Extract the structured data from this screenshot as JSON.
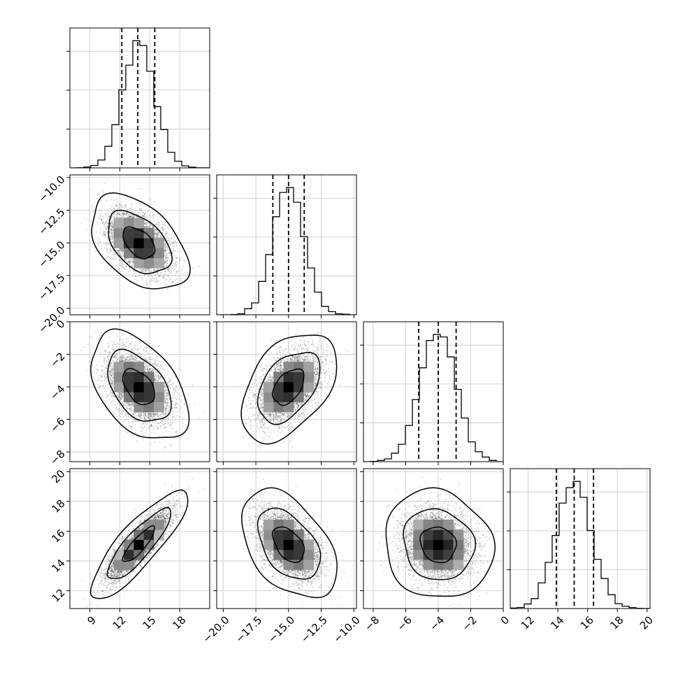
{
  "chart_data": {
    "type": "corner",
    "parameters": [
      {
        "ticks": [
          9,
          12,
          15,
          18
        ],
        "tick_labels": [
          "9",
          "12",
          "15",
          "18"
        ],
        "range": [
          7.0,
          21.0
        ],
        "quantiles": [
          12.2,
          13.8,
          15.5
        ],
        "mean": 13.9,
        "sd": 1.6
      },
      {
        "ticks": [
          -20.0,
          -17.5,
          -15.0,
          -12.5,
          -10.0
        ],
        "tick_labels": [
          "−20.0",
          "−17.5",
          "−15.0",
          "−12.5",
          "−10.0"
        ],
        "range": [
          -20.5,
          -9.8
        ],
        "quantiles": [
          -16.2,
          -15.0,
          -13.8
        ],
        "mean": -15.0,
        "sd": 1.2
      },
      {
        "ticks": [
          -8,
          -6,
          -4,
          -2,
          0
        ],
        "tick_labels": [
          "−8",
          "−6",
          "−4",
          "−2",
          "0"
        ],
        "range": [
          -8.6,
          0.0
        ],
        "quantiles": [
          -5.2,
          -4.0,
          -2.9
        ],
        "mean": -4.0,
        "sd": 1.1
      },
      {
        "ticks": [
          12,
          14,
          16,
          18,
          20
        ],
        "tick_labels": [
          "12",
          "14",
          "16",
          "18",
          "20"
        ],
        "range": [
          10.8,
          20.2
        ],
        "quantiles": [
          13.9,
          15.1,
          16.4
        ],
        "mean": 15.1,
        "sd": 1.2
      }
    ],
    "correlations": [
      {
        "pair": [
          0,
          1
        ],
        "rho": -0.45
      },
      {
        "pair": [
          0,
          2
        ],
        "rho": -0.45
      },
      {
        "pair": [
          1,
          2
        ],
        "rho": 0.45
      },
      {
        "pair": [
          0,
          3
        ],
        "rho": 0.85
      },
      {
        "pair": [
          1,
          3
        ],
        "rho": -0.45
      },
      {
        "pair": [
          2,
          3
        ],
        "rho": -0.1
      }
    ],
    "histogram_bins": 20,
    "contour_levels": [
      0.39,
      0.86,
      0.99
    ],
    "grid": true,
    "quantile_line_style": "dashed"
  }
}
